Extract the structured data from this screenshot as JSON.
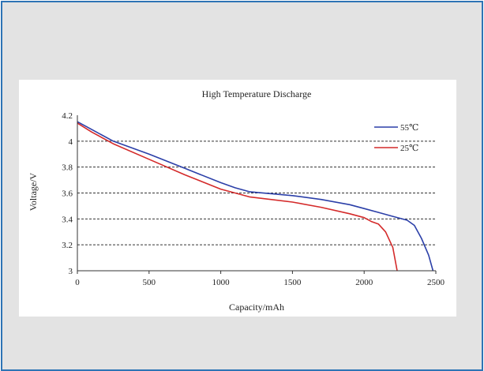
{
  "colors": {
    "frame_border": "#2e74b5",
    "frame_background": "#e3e3e3",
    "series_55": "#2b3fa8",
    "series_25": "#d42a2a"
  },
  "chart_data": {
    "type": "line",
    "title": "High Temperature Discharge",
    "xlabel": "Capacity/mAh",
    "ylabel": "Voltage/V",
    "xlim": [
      0,
      2500
    ],
    "ylim": [
      3,
      4.2
    ],
    "x_ticks": [
      "0",
      "500",
      "1000",
      "1500",
      "2000",
      "2500"
    ],
    "y_ticks": [
      "3",
      "3.2",
      "3.4",
      "3.6",
      "3.8",
      "4",
      "4.2"
    ],
    "grid": "horizontal dashed",
    "legend_position": "top-right",
    "series": [
      {
        "name": "55℃",
        "color": "#2b3fa8",
        "x": [
          0,
          100,
          250,
          500,
          750,
          1000,
          1100,
          1200,
          1500,
          1700,
          1900,
          2000,
          2100,
          2200,
          2300,
          2350,
          2400,
          2450,
          2480
        ],
        "y": [
          4.15,
          4.09,
          4.0,
          3.9,
          3.79,
          3.68,
          3.64,
          3.61,
          3.58,
          3.55,
          3.51,
          3.48,
          3.45,
          3.42,
          3.39,
          3.35,
          3.25,
          3.12,
          3.0
        ]
      },
      {
        "name": "25℃",
        "color": "#d42a2a",
        "x": [
          0,
          100,
          250,
          500,
          750,
          1000,
          1100,
          1200,
          1500,
          1700,
          1900,
          2000,
          2050,
          2100,
          2150,
          2200,
          2230
        ],
        "y": [
          4.14,
          4.07,
          3.98,
          3.86,
          3.74,
          3.63,
          3.6,
          3.57,
          3.53,
          3.49,
          3.44,
          3.41,
          3.38,
          3.36,
          3.3,
          3.18,
          3.0
        ]
      }
    ]
  }
}
